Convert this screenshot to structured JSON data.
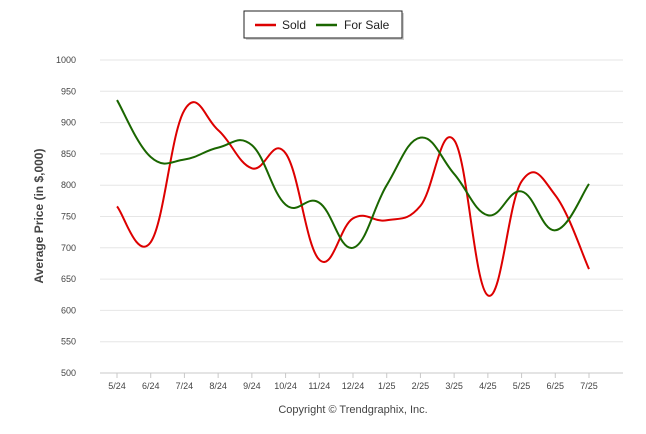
{
  "chart_data": {
    "type": "line",
    "title": "",
    "xlabel": "",
    "ylabel": "Average Price (in $,000)",
    "ylim": [
      500,
      1000
    ],
    "yticks": [
      500,
      550,
      600,
      650,
      700,
      750,
      800,
      850,
      900,
      950,
      1000
    ],
    "grid": true,
    "legend_position": "top-center",
    "categories": [
      "5/24",
      "6/24",
      "7/24",
      "8/24",
      "9/24",
      "10/24",
      "11/24",
      "12/24",
      "1/25",
      "2/25",
      "3/25",
      "4/25",
      "5/25",
      "6/25",
      "7/25"
    ],
    "series": [
      {
        "name": "Sold",
        "color": "#dd0000",
        "values": [
          766,
          709,
          920,
          888,
          827,
          851,
          681,
          747,
          744,
          767,
          872,
          624,
          806,
          784,
          666
        ]
      },
      {
        "name": "For Sale",
        "color": "#1a6600",
        "values": [
          936,
          845,
          841,
          860,
          864,
          769,
          772,
          700,
          800,
          876,
          818,
          752,
          790,
          728,
          802
        ]
      }
    ],
    "credit": "Copyright © Trendgraphix, Inc."
  }
}
